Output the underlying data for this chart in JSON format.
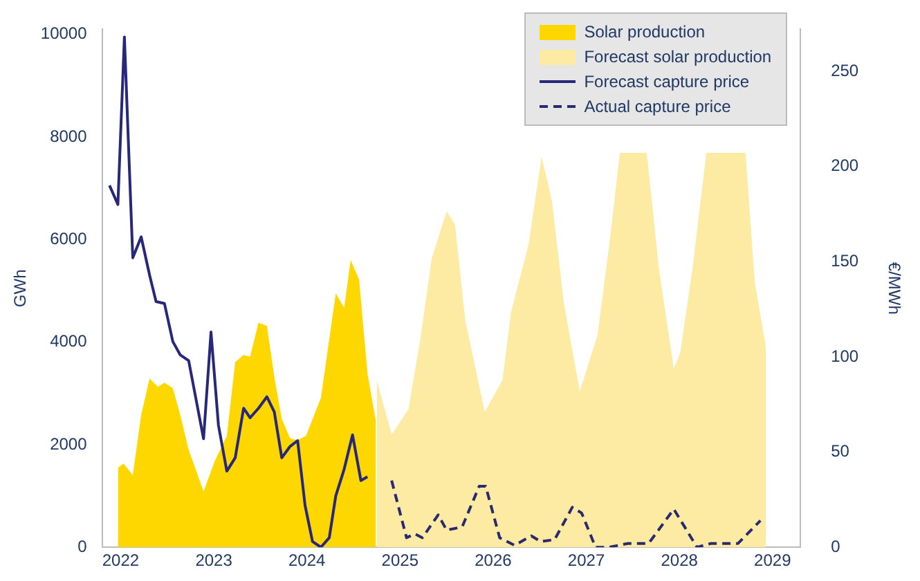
{
  "chart_data": {
    "type": "area",
    "ylabel": "GWh",
    "y2label": "€/MWh",
    "xlim": [
      2021.8,
      2029.3
    ],
    "xticks": [
      2022,
      2023,
      2024,
      2025,
      2026,
      2027,
      2028,
      2029
    ],
    "ylim": [
      0,
      10100
    ],
    "yticks": [
      0,
      2000,
      4000,
      6000,
      8000,
      10000
    ],
    "y2lim": [
      0,
      272
    ],
    "y2ticks": [
      0,
      50,
      100,
      150,
      200,
      250
    ],
    "legend": "top right",
    "series": [
      {
        "name": "Solar production",
        "color": "#ffd700",
        "x": [
          2021.97,
          2022.03,
          2022.13,
          2022.22,
          2022.31,
          2022.4,
          2022.47,
          2022.56,
          2022.64,
          2022.73,
          2022.89,
          2023.01,
          2023.14,
          2023.23,
          2023.32,
          2023.39,
          2023.48,
          2023.57,
          2023.65,
          2023.73,
          2023.82,
          2023.9,
          2023.99,
          2024.15,
          2024.31,
          2024.4,
          2024.47,
          2024.56,
          2024.65,
          2024.74
        ],
        "values": [
          1550,
          1630,
          1410,
          2580,
          3290,
          3130,
          3210,
          3100,
          2580,
          1900,
          1090,
          1680,
          2170,
          3610,
          3750,
          3720,
          4380,
          4320,
          3320,
          2500,
          2120,
          2090,
          2170,
          2910,
          4950,
          4670,
          5600,
          5220,
          3400,
          2450
        ]
      },
      {
        "name": "Forecast solar production",
        "color": "#fdeaa3",
        "x": [
          2024.75,
          2024.91,
          2025.09,
          2025.22,
          2025.34,
          2025.5,
          2025.59,
          2025.7,
          2025.91,
          2026.1,
          2026.19,
          2026.38,
          2026.52,
          2026.63,
          2026.76,
          2026.93,
          2027.12,
          2027.26,
          2027.36,
          2027.65,
          2027.78,
          2027.94,
          2028.01,
          2028.14,
          2028.29,
          2028.71,
          2028.81,
          2028.93
        ],
        "values": [
          3260,
          2200,
          2690,
          4080,
          5630,
          6550,
          6300,
          4430,
          2640,
          3260,
          4570,
          5900,
          7610,
          6770,
          4760,
          3040,
          4130,
          6090,
          7690,
          7690,
          5430,
          3480,
          3800,
          5430,
          7690,
          7690,
          5160,
          3890
        ]
      },
      {
        "name": "Forecast capture price",
        "type": "line",
        "axis": "y2",
        "color": "#28287a",
        "line_style": "solid",
        "x": [
          2021.88,
          2021.97,
          2022.04,
          2022.13,
          2022.22,
          2022.31,
          2022.38,
          2022.47,
          2022.56,
          2022.64,
          2022.73,
          2022.89,
          2022.97,
          2023.05,
          2023.14,
          2023.23,
          2023.32,
          2023.39,
          2023.48,
          2023.57,
          2023.65,
          2023.73,
          2023.82,
          2023.9,
          2023.98,
          2024.06,
          2024.15,
          2024.24,
          2024.31,
          2024.4,
          2024.49,
          2024.58,
          2024.65
        ],
        "values": [
          190,
          180,
          268,
          152,
          163,
          143,
          129,
          128,
          108,
          101,
          98,
          57,
          113,
          64,
          40,
          47,
          73,
          68,
          73,
          79,
          71,
          47,
          53,
          56,
          22,
          3,
          0,
          5,
          27,
          41,
          59,
          35,
          37
        ]
      },
      {
        "name": "Actual capture price",
        "type": "line",
        "axis": "y2",
        "color": "#2a2a6e",
        "line_style": "dashed",
        "x": [
          2024.91,
          2025.07,
          2025.16,
          2025.24,
          2025.41,
          2025.5,
          2025.6,
          2025.67,
          2025.85,
          2025.92,
          2026.07,
          2026.23,
          2026.41,
          2026.51,
          2026.66,
          2026.85,
          2026.95,
          2027.1,
          2027.24,
          2027.45,
          2027.67,
          2027.94,
          2028.19,
          2028.34,
          2028.63,
          2028.87
        ],
        "values": [
          35,
          5,
          7,
          5,
          17,
          9,
          10,
          11,
          32,
          32,
          5,
          1,
          6,
          3,
          4,
          21,
          18,
          0,
          0,
          2,
          2,
          20,
          0,
          2,
          2,
          14
        ]
      }
    ]
  }
}
